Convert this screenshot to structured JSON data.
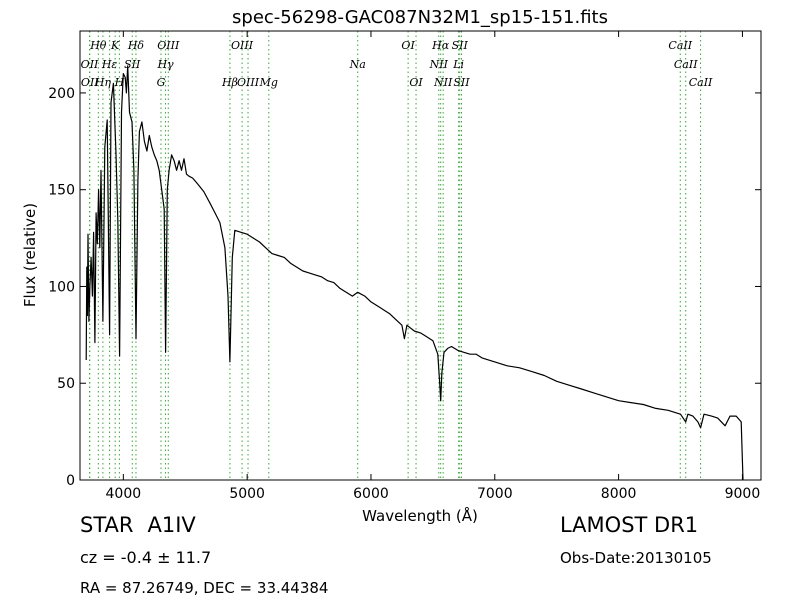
{
  "chart_data": {
    "type": "line",
    "title": "spec-56298-GAC087N32M1_sp15-151.fits",
    "xlabel": "Wavelength (Å)",
    "ylabel": "Flux (relative)",
    "xlim": [
      3650,
      9150
    ],
    "ylim": [
      0,
      232
    ],
    "xticks": [
      4000,
      5000,
      6000,
      7000,
      8000,
      9000
    ],
    "yticks": [
      0,
      50,
      100,
      150,
      200
    ],
    "grid": false,
    "line_color": "#000000",
    "marker_color": "#33aa33",
    "spectrum": [
      [
        3700,
        62
      ],
      [
        3705,
        110
      ],
      [
        3710,
        85
      ],
      [
        3715,
        127
      ],
      [
        3722,
        82
      ],
      [
        3730,
        100
      ],
      [
        3740,
        115
      ],
      [
        3750,
        95
      ],
      [
        3760,
        128
      ],
      [
        3770,
        71
      ],
      [
        3780,
        138
      ],
      [
        3790,
        122
      ],
      [
        3800,
        150
      ],
      [
        3810,
        120
      ],
      [
        3820,
        160
      ],
      [
        3835,
        82
      ],
      [
        3850,
        172
      ],
      [
        3870,
        186
      ],
      [
        3889,
        75
      ],
      [
        3900,
        195
      ],
      [
        3920,
        205
      ],
      [
        3940,
        170
      ],
      [
        3955,
        135
      ],
      [
        3970,
        64
      ],
      [
        3985,
        190
      ],
      [
        4000,
        210
      ],
      [
        4015,
        208
      ],
      [
        4025,
        200
      ],
      [
        4035,
        214
      ],
      [
        4050,
        190
      ],
      [
        4070,
        185
      ],
      [
        4085,
        160
      ],
      [
        4102,
        73
      ],
      [
        4118,
        155
      ],
      [
        4130,
        180
      ],
      [
        4150,
        185
      ],
      [
        4170,
        175
      ],
      [
        4190,
        170
      ],
      [
        4210,
        178
      ],
      [
        4230,
        172
      ],
      [
        4250,
        168
      ],
      [
        4270,
        165
      ],
      [
        4290,
        160
      ],
      [
        4310,
        150
      ],
      [
        4330,
        140
      ],
      [
        4341,
        66
      ],
      [
        4355,
        150
      ],
      [
        4370,
        160
      ],
      [
        4390,
        168
      ],
      [
        4410,
        165
      ],
      [
        4430,
        160
      ],
      [
        4450,
        165
      ],
      [
        4470,
        160
      ],
      [
        4490,
        166
      ],
      [
        4510,
        158
      ],
      [
        4530,
        157
      ],
      [
        4560,
        156
      ],
      [
        4600,
        153
      ],
      [
        4650,
        149
      ],
      [
        4700,
        143
      ],
      [
        4740,
        138
      ],
      [
        4780,
        133
      ],
      [
        4820,
        120
      ],
      [
        4845,
        95
      ],
      [
        4861,
        61
      ],
      [
        4880,
        115
      ],
      [
        4900,
        129
      ],
      [
        4950,
        128
      ],
      [
        5000,
        127
      ],
      [
        5050,
        125
      ],
      [
        5100,
        123
      ],
      [
        5150,
        120
      ],
      [
        5200,
        117
      ],
      [
        5250,
        116
      ],
      [
        5300,
        115
      ],
      [
        5350,
        112
      ],
      [
        5400,
        110
      ],
      [
        5450,
        108
      ],
      [
        5500,
        107
      ],
      [
        5550,
        106
      ],
      [
        5600,
        105
      ],
      [
        5650,
        103
      ],
      [
        5700,
        102
      ],
      [
        5750,
        99
      ],
      [
        5800,
        97
      ],
      [
        5850,
        95
      ],
      [
        5893,
        97
      ],
      [
        5950,
        95
      ],
      [
        6000,
        92
      ],
      [
        6050,
        90
      ],
      [
        6100,
        88
      ],
      [
        6150,
        86
      ],
      [
        6200,
        83
      ],
      [
        6250,
        80
      ],
      [
        6270,
        73
      ],
      [
        6290,
        80
      ],
      [
        6350,
        77
      ],
      [
        6400,
        76
      ],
      [
        6450,
        74
      ],
      [
        6500,
        72
      ],
      [
        6540,
        65
      ],
      [
        6555,
        50
      ],
      [
        6563,
        41
      ],
      [
        6572,
        55
      ],
      [
        6590,
        66
      ],
      [
        6620,
        68
      ],
      [
        6650,
        69
      ],
      [
        6700,
        67
      ],
      [
        6750,
        66
      ],
      [
        6800,
        65
      ],
      [
        6850,
        65
      ],
      [
        6900,
        63
      ],
      [
        7000,
        61
      ],
      [
        7100,
        59
      ],
      [
        7200,
        58
      ],
      [
        7300,
        56
      ],
      [
        7400,
        54
      ],
      [
        7500,
        51
      ],
      [
        7600,
        49
      ],
      [
        7700,
        47
      ],
      [
        7800,
        45
      ],
      [
        7900,
        43
      ],
      [
        8000,
        41
      ],
      [
        8100,
        40
      ],
      [
        8200,
        39
      ],
      [
        8300,
        37
      ],
      [
        8400,
        36
      ],
      [
        8500,
        34
      ],
      [
        8542,
        30
      ],
      [
        8560,
        34
      ],
      [
        8600,
        33
      ],
      [
        8640,
        30
      ],
      [
        8662,
        27
      ],
      [
        8690,
        34
      ],
      [
        8750,
        33
      ],
      [
        8800,
        32
      ],
      [
        8860,
        28
      ],
      [
        8900,
        33
      ],
      [
        8950,
        33
      ],
      [
        8990,
        30
      ],
      [
        9000,
        10
      ],
      [
        9005,
        0
      ]
    ],
    "lines": [
      {
        "label": "Hθ",
        "wavelength": 3798,
        "row": 1
      },
      {
        "label": "K",
        "wavelength": 3934,
        "row": 1
      },
      {
        "label": "Hδ",
        "wavelength": 4102,
        "row": 1
      },
      {
        "label": "OIII",
        "wavelength": 4363,
        "row": 1
      },
      {
        "label": "OIII",
        "wavelength": 4959,
        "row": 1
      },
      {
        "label": "OI",
        "wavelength": 6300,
        "row": 1
      },
      {
        "label": "Hα",
        "wavelength": 6563,
        "row": 1
      },
      {
        "label": "SII",
        "wavelength": 6717,
        "row": 1
      },
      {
        "label": "CaII",
        "wavelength": 8498,
        "row": 1
      },
      {
        "label": "OII",
        "wavelength": 3727,
        "row": 2
      },
      {
        "label": "Hε",
        "wavelength": 3889,
        "row": 2
      },
      {
        "label": "SII",
        "wavelength": 4072,
        "row": 2
      },
      {
        "label": "Hγ",
        "wavelength": 4341,
        "row": 2
      },
      {
        "label": "Na",
        "wavelength": 5893,
        "row": 2
      },
      {
        "label": "NII",
        "wavelength": 6548,
        "row": 2
      },
      {
        "label": "Li",
        "wavelength": 6708,
        "row": 2
      },
      {
        "label": "CaII",
        "wavelength": 8542,
        "row": 2
      },
      {
        "label": "OII",
        "wavelength": 3729,
        "row": 3
      },
      {
        "label": "Hη",
        "wavelength": 3835,
        "row": 3
      },
      {
        "label": "H",
        "wavelength": 3968,
        "row": 3
      },
      {
        "label": "G",
        "wavelength": 4304,
        "row": 3
      },
      {
        "label": "Hβ",
        "wavelength": 4861,
        "row": 3
      },
      {
        "label": "OIII",
        "wavelength": 5007,
        "row": 3
      },
      {
        "label": "Mg",
        "wavelength": 5175,
        "row": 3
      },
      {
        "label": "OI",
        "wavelength": 6364,
        "row": 3
      },
      {
        "label": "NII",
        "wavelength": 6583,
        "row": 3
      },
      {
        "label": "SII",
        "wavelength": 6731,
        "row": 3
      },
      {
        "label": "CaII",
        "wavelength": 8662,
        "row": 3
      }
    ]
  },
  "info": {
    "object_class": "STAR",
    "subclass": "A1IV",
    "cz_text": "cz = -0.4 ± 11.7",
    "coords_text": "RA = 87.26749, DEC = 33.44384",
    "survey": "LAMOST DR1",
    "obs_date_text": "Obs-Date:20130105"
  }
}
